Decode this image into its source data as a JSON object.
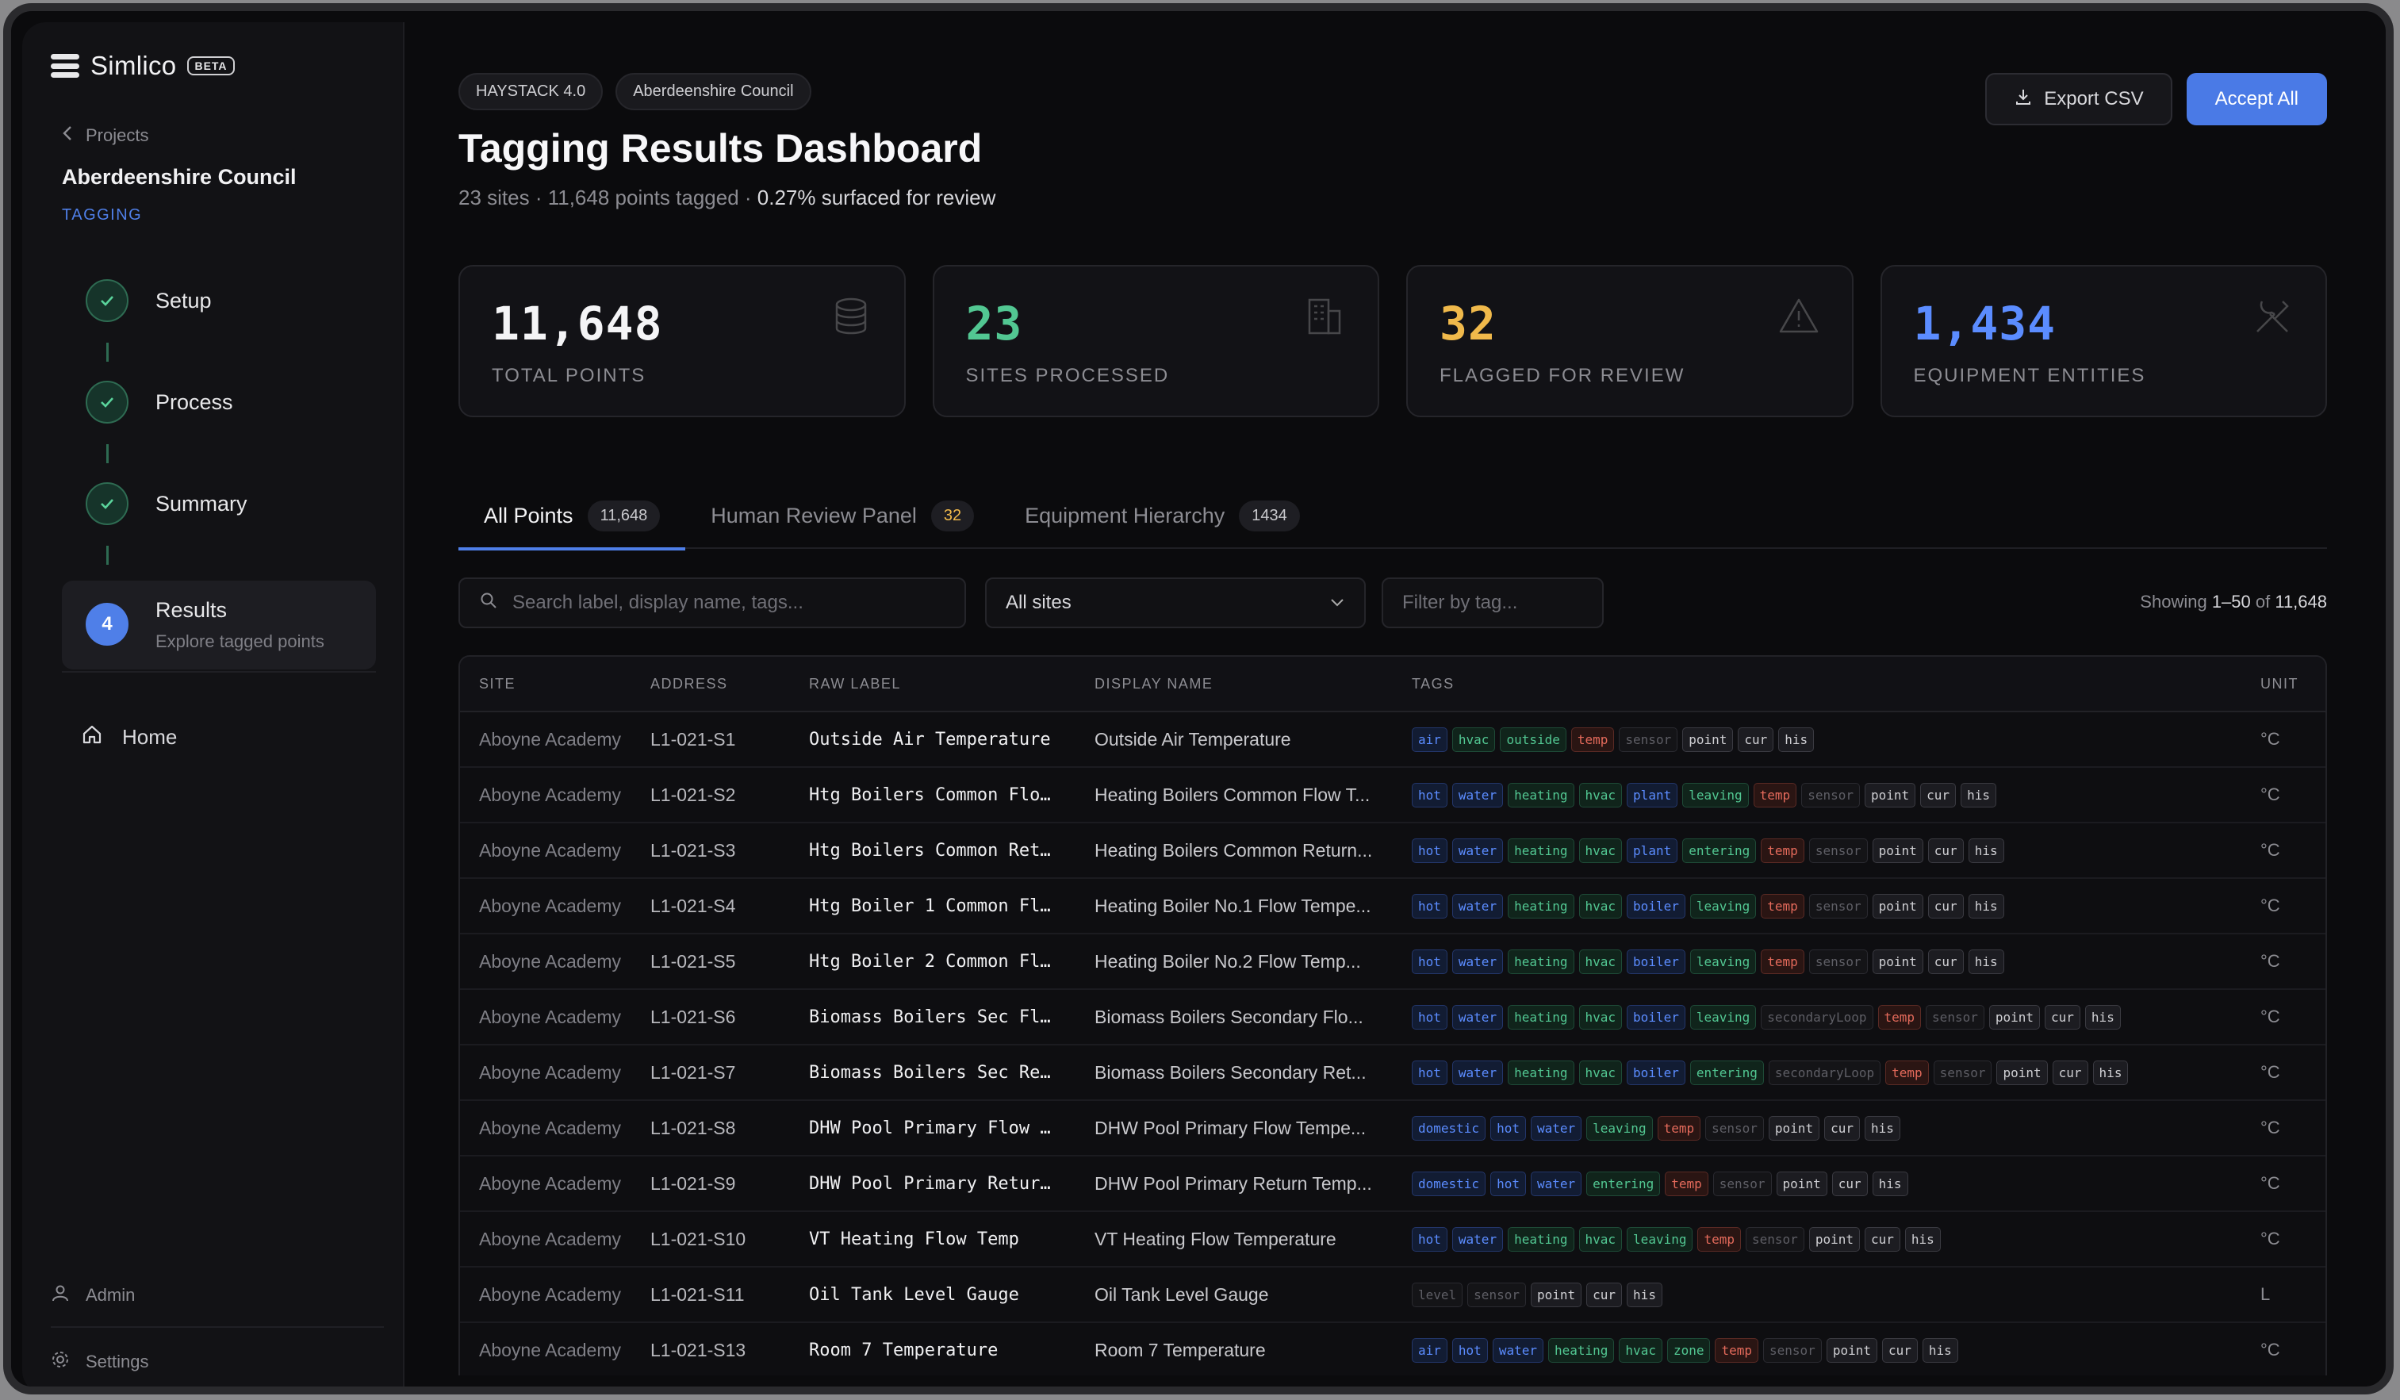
{
  "app": {
    "name": "Simlico",
    "badge": "BETA"
  },
  "sidebar": {
    "back_label": "Projects",
    "project_name": "Aberdeenshire Council",
    "project_section": "TAGGING",
    "steps": [
      {
        "label": "Setup",
        "status": "done"
      },
      {
        "label": "Process",
        "status": "done"
      },
      {
        "label": "Summary",
        "status": "done"
      },
      {
        "label": "Results",
        "number": "4",
        "sub": "Explore tagged points",
        "status": "active"
      }
    ],
    "home_label": "Home",
    "admin_label": "Admin",
    "settings_label": "Settings"
  },
  "header": {
    "chips": [
      "HAYSTACK 4.0",
      "Aberdeenshire Council"
    ],
    "title": "Tagging Results Dashboard",
    "subtitle_prefix": "23 sites · 11,648 points tagged · ",
    "subtitle_highlight": "0.27% surfaced for review",
    "export_label": "Export CSV",
    "accept_label": "Accept All"
  },
  "stats": [
    {
      "value": "11,648",
      "label": "TOTAL POINTS",
      "color": "#f4f4f6",
      "icon": "database-icon"
    },
    {
      "value": "23",
      "label": "SITES PROCESSED",
      "color": "#52c792",
      "icon": "building-icon"
    },
    {
      "value": "32",
      "label": "FLAGGED FOR REVIEW",
      "color": "#f0b94b",
      "icon": "warning-icon"
    },
    {
      "value": "1,434",
      "label": "EQUIPMENT ENTITIES",
      "color": "#5b8cff",
      "icon": "tools-icon"
    }
  ],
  "tabs": [
    {
      "label": "All Points",
      "count": "11,648",
      "active": true
    },
    {
      "label": "Human Review Panel",
      "count": "32",
      "active": false
    },
    {
      "label": "Equipment Hierarchy",
      "count": "1434",
      "active": false
    }
  ],
  "filters": {
    "search_placeholder": "Search label, display name, tags...",
    "site_select": "All sites",
    "tag_placeholder": "Filter by tag...",
    "showing_prefix": "Showing ",
    "showing_range": "1–50",
    "showing_of": " of ",
    "showing_total": "11,648"
  },
  "table": {
    "columns": [
      "SITE",
      "ADDRESS",
      "RAW LABEL",
      "DISPLAY NAME",
      "TAGS",
      "UNIT"
    ],
    "rows": [
      {
        "site": "Aboyne Academy",
        "address": "L1-021-S1",
        "raw": "Outside Air Temperature",
        "display": "Outside Air Temperature",
        "tags": [
          "air",
          "hvac",
          "outside",
          "temp",
          "sensor",
          "point",
          "cur",
          "his"
        ],
        "unit": "°C"
      },
      {
        "site": "Aboyne Academy",
        "address": "L1-021-S2",
        "raw": "Htg Boilers Common Flo…",
        "display": "Heating Boilers Common Flow T...",
        "tags": [
          "hot",
          "water",
          "heating",
          "hvac",
          "plant",
          "leaving",
          "temp",
          "sensor",
          "point",
          "cur",
          "his"
        ],
        "unit": "°C"
      },
      {
        "site": "Aboyne Academy",
        "address": "L1-021-S3",
        "raw": "Htg Boilers Common Ret…",
        "display": "Heating Boilers Common Return...",
        "tags": [
          "hot",
          "water",
          "heating",
          "hvac",
          "plant",
          "entering",
          "temp",
          "sensor",
          "point",
          "cur",
          "his"
        ],
        "unit": "°C"
      },
      {
        "site": "Aboyne Academy",
        "address": "L1-021-S4",
        "raw": "Htg Boiler 1 Common Fl…",
        "display": "Heating Boiler No.1 Flow Tempe...",
        "tags": [
          "hot",
          "water",
          "heating",
          "hvac",
          "boiler",
          "leaving",
          "temp",
          "sensor",
          "point",
          "cur",
          "his"
        ],
        "unit": "°C"
      },
      {
        "site": "Aboyne Academy",
        "address": "L1-021-S5",
        "raw": "Htg Boiler 2 Common Fl…",
        "display": "Heating Boiler No.2 Flow Temp...",
        "tags": [
          "hot",
          "water",
          "heating",
          "hvac",
          "boiler",
          "leaving",
          "temp",
          "sensor",
          "point",
          "cur",
          "his"
        ],
        "unit": "°C"
      },
      {
        "site": "Aboyne Academy",
        "address": "L1-021-S6",
        "raw": "Biomass Boilers Sec Fl…",
        "display": "Biomass Boilers Secondary Flo...",
        "tags": [
          "hot",
          "water",
          "heating",
          "hvac",
          "boiler",
          "leaving",
          "secondaryLoop",
          "temp",
          "sensor",
          "point",
          "cur",
          "his"
        ],
        "unit": "°C"
      },
      {
        "site": "Aboyne Academy",
        "address": "L1-021-S7",
        "raw": "Biomass Boilers Sec Re…",
        "display": "Biomass Boilers Secondary Ret...",
        "tags": [
          "hot",
          "water",
          "heating",
          "hvac",
          "boiler",
          "entering",
          "secondaryLoop",
          "temp",
          "sensor",
          "point",
          "cur",
          "his"
        ],
        "unit": "°C"
      },
      {
        "site": "Aboyne Academy",
        "address": "L1-021-S8",
        "raw": "DHW Pool Primary Flow …",
        "display": "DHW Pool Primary Flow Tempe...",
        "tags": [
          "domestic",
          "hot",
          "water",
          "leaving",
          "temp",
          "sensor",
          "point",
          "cur",
          "his"
        ],
        "unit": "°C"
      },
      {
        "site": "Aboyne Academy",
        "address": "L1-021-S9",
        "raw": "DHW Pool Primary Retur…",
        "display": "DHW Pool Primary Return Temp...",
        "tags": [
          "domestic",
          "hot",
          "water",
          "entering",
          "temp",
          "sensor",
          "point",
          "cur",
          "his"
        ],
        "unit": "°C"
      },
      {
        "site": "Aboyne Academy",
        "address": "L1-021-S10",
        "raw": "VT Heating Flow Temp",
        "display": "VT Heating Flow Temperature",
        "tags": [
          "hot",
          "water",
          "heating",
          "hvac",
          "leaving",
          "temp",
          "sensor",
          "point",
          "cur",
          "his"
        ],
        "unit": "°C"
      },
      {
        "site": "Aboyne Academy",
        "address": "L1-021-S11",
        "raw": "Oil Tank Level Gauge",
        "display": "Oil Tank Level Gauge",
        "tags": [
          "level",
          "sensor",
          "point",
          "cur",
          "his"
        ],
        "unit": "L"
      },
      {
        "site": "Aboyne Academy",
        "address": "L1-021-S13",
        "raw": "Room 7 Temperature",
        "display": "Room 7 Temperature",
        "tags": [
          "air",
          "hot",
          "water",
          "heating",
          "hvac",
          "zone",
          "temp",
          "sensor",
          "point",
          "cur",
          "his"
        ],
        "unit": "°C"
      }
    ]
  },
  "tag_colors": {
    "air": "blue",
    "hot": "blue",
    "water": "blue",
    "domestic": "blue",
    "plant": "blue",
    "boiler": "blue",
    "hvac": "green",
    "outside": "green",
    "heating": "green",
    "leaving": "green",
    "entering": "green",
    "zone": "green",
    "temp": "red",
    "sensor": "dim",
    "secondaryLoop": "dim",
    "level": "dim",
    "point": "gray",
    "cur": "gray",
    "his": "gray"
  }
}
